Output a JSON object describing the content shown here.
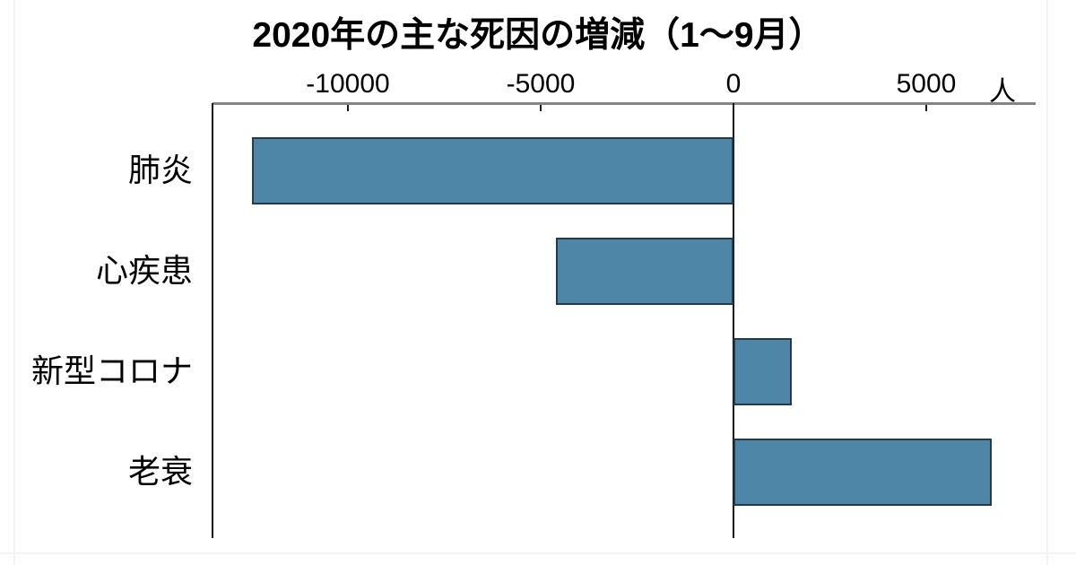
{
  "chart_data": {
    "type": "bar",
    "orientation": "horizontal",
    "title": "2020年の主な死因の増減（1～9月）",
    "unit_label": "人",
    "categories": [
      "肺炎",
      "心疾患",
      "新型コロナ",
      "老衰"
    ],
    "values": [
      -12500,
      -4600,
      1500,
      6700
    ],
    "x_ticks": [
      -10000,
      -5000,
      0,
      5000
    ],
    "x_tick_labels": [
      "-10000",
      "-5000",
      "0",
      "5000"
    ],
    "xlim": [
      -13500,
      7800
    ],
    "xlabel": "",
    "ylabel": "",
    "grid": false,
    "legend": false,
    "axis_position": "top",
    "bar_color": "#4e86a8",
    "bar_border_color": "#263a4c",
    "axis_line_color": "#858585",
    "text_color": "#000000"
  }
}
